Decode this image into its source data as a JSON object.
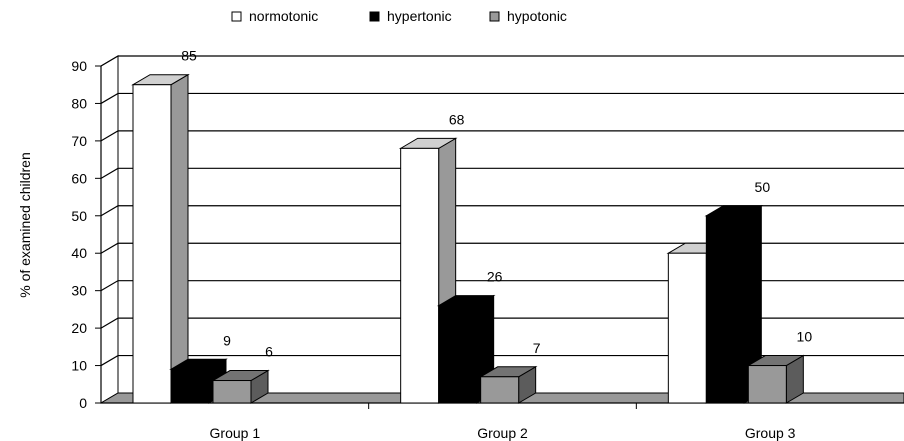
{
  "chart_data": {
    "type": "bar",
    "categories": [
      "Group 1",
      "Group 2",
      "Group 3"
    ],
    "series": [
      {
        "name": "normotonic",
        "values": [
          85,
          68,
          40
        ],
        "color": "#ffffff"
      },
      {
        "name": "hypertonic",
        "values": [
          9,
          26,
          50
        ],
        "color": "#000000"
      },
      {
        "name": "hypotonic",
        "values": [
          6,
          7,
          10
        ],
        "color": "#999999"
      }
    ],
    "ylabel": "% of examined children",
    "ylim": [
      0,
      90
    ],
    "yticks": [
      0,
      10,
      20,
      30,
      40,
      50,
      60,
      70,
      80,
      90
    ],
    "grid": true,
    "legend": "top-center",
    "style": "3d"
  }
}
